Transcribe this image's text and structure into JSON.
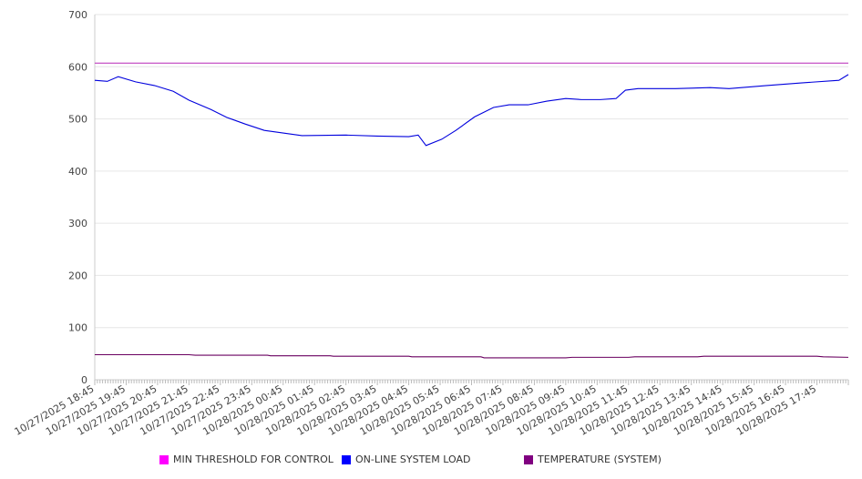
{
  "chart_data": {
    "type": "line",
    "title": "",
    "xlabel": "",
    "ylabel": "",
    "ylim": [
      0,
      700
    ],
    "yticks": [
      0,
      100,
      200,
      300,
      400,
      500,
      600,
      700
    ],
    "grid": true,
    "legend_position": "bottom",
    "x_unit": "hours since 10/27/2025 18:45",
    "xlim": [
      0,
      24
    ],
    "xtick_labels": [
      "10/27/2025 18:45",
      "10/27/2025 19:45",
      "10/27/2025 20:45",
      "10/27/2025 21:45",
      "10/27/2025 22:45",
      "10/27/2025 23:45",
      "10/28/2025 00:45",
      "10/28/2025 01:45",
      "10/28/2025 02:45",
      "10/28/2025 03:45",
      "10/28/2025 04:45",
      "10/28/2025 05:45",
      "10/28/2025 06:45",
      "10/28/2025 07:45",
      "10/28/2025 08:45",
      "10/28/2025 09:45",
      "10/28/2025 10:45",
      "10/28/2025 11:45",
      "10/28/2025 12:45",
      "10/28/2025 13:45",
      "10/28/2025 14:45",
      "10/28/2025 15:45",
      "10/28/2025 16:45",
      "10/28/2025 17:45"
    ],
    "series": [
      {
        "name": "MIN THRESHOLD FOR CONTROL",
        "color": "#ff00ff",
        "line_color": "#c040c0",
        "points": [
          [
            0,
            607
          ],
          [
            24,
            607
          ]
        ]
      },
      {
        "name": "ON-LINE SYSTEM LOAD",
        "color": "#0000ff",
        "line_color": "#0000dd",
        "points": [
          [
            0,
            574
          ],
          [
            0.4,
            572
          ],
          [
            0.75,
            581
          ],
          [
            1.3,
            571
          ],
          [
            1.9,
            564
          ],
          [
            2.5,
            553
          ],
          [
            3.0,
            536
          ],
          [
            3.7,
            518
          ],
          [
            4.2,
            503
          ],
          [
            4.8,
            490
          ],
          [
            5.4,
            478
          ],
          [
            6.0,
            473
          ],
          [
            6.6,
            468
          ],
          [
            8.0,
            469
          ],
          [
            9.0,
            467
          ],
          [
            10.0,
            466
          ],
          [
            10.3,
            469
          ],
          [
            10.55,
            449
          ],
          [
            11.05,
            461
          ],
          [
            11.5,
            478
          ],
          [
            12.1,
            504
          ],
          [
            12.7,
            522
          ],
          [
            13.2,
            527
          ],
          [
            13.8,
            527
          ],
          [
            14.4,
            534
          ],
          [
            15.0,
            539
          ],
          [
            15.5,
            537
          ],
          [
            16.1,
            537
          ],
          [
            16.6,
            539
          ],
          [
            16.9,
            555
          ],
          [
            17.3,
            558
          ],
          [
            18.5,
            558
          ],
          [
            19.6,
            560
          ],
          [
            20.2,
            558
          ],
          [
            21.4,
            564
          ],
          [
            22.5,
            569
          ],
          [
            23.7,
            574
          ],
          [
            24,
            585
          ]
        ]
      },
      {
        "name": "TEMPERATURE (SYSTEM)",
        "color": "#800080",
        "line_color": "#6a0060",
        "points": [
          [
            0,
            48
          ],
          [
            3,
            48
          ],
          [
            3.2,
            47
          ],
          [
            5.5,
            47
          ],
          [
            5.6,
            46
          ],
          [
            7.5,
            46
          ],
          [
            7.6,
            45
          ],
          [
            10,
            45
          ],
          [
            10.1,
            44
          ],
          [
            12.3,
            44
          ],
          [
            12.4,
            42
          ],
          [
            15,
            42
          ],
          [
            15.2,
            43
          ],
          [
            17,
            43
          ],
          [
            17.2,
            44
          ],
          [
            19.2,
            44
          ],
          [
            19.4,
            45
          ],
          [
            23,
            45
          ],
          [
            23.2,
            44
          ],
          [
            24,
            43
          ]
        ]
      }
    ]
  }
}
